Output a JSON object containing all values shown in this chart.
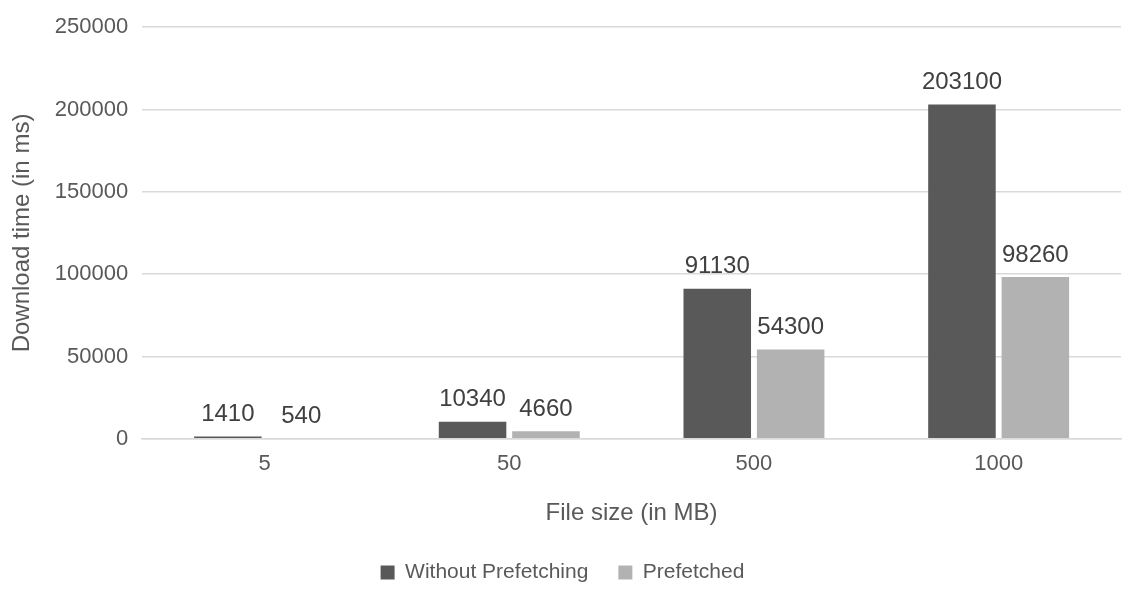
{
  "chart_data": {
    "type": "bar",
    "xlabel": "File size (in MB)",
    "ylabel": "Download time (in ms)",
    "categories": [
      "5",
      "50",
      "500",
      "1000"
    ],
    "series": [
      {
        "name": "Without Prefetching",
        "color": "#595959",
        "values": [
          1410,
          10340,
          91130,
          203100
        ]
      },
      {
        "name": "Prefetched",
        "color": "#b2b2b2",
        "values": [
          540,
          4660,
          54300,
          98260
        ]
      }
    ],
    "ylim": [
      0,
      250000
    ],
    "yticks": [
      0,
      50000,
      100000,
      150000,
      200000,
      250000
    ],
    "grid": "y",
    "legend": "bottom",
    "data_labels": true
  }
}
